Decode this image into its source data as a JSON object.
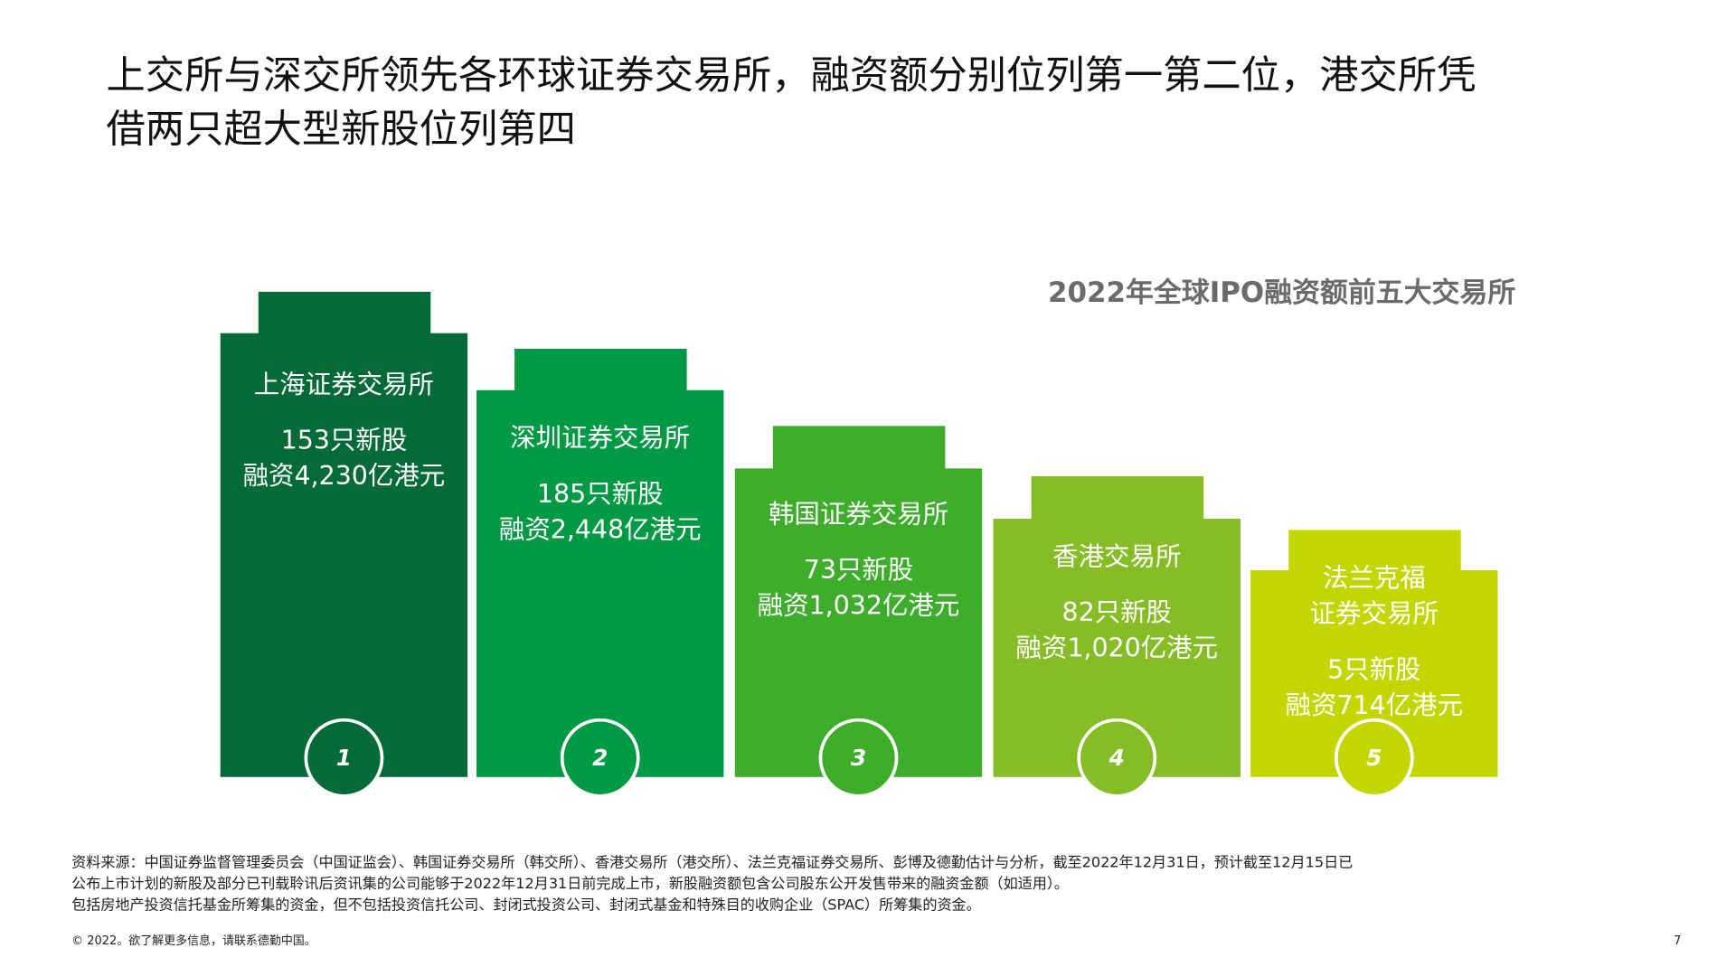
{
  "title_lines": [
    "上交所与深交所领先各环球证券交易所，融资额分别位列第一第二位，港交所凭",
    "借两只超大型新股位列第四"
  ],
  "subtitle": "2022年全球IPO融资额前五大交易所",
  "exchanges": [
    {
      "name_lines": [
        "上海证券交易所"
      ],
      "ipos": "153只新股",
      "funds": "融资4,230亿港元",
      "rank": "1"
    },
    {
      "name_lines": [
        "深圳证券交易所"
      ],
      "ipos": "185只新股",
      "funds": "融资2,448亿港元",
      "rank": "2"
    },
    {
      "name_lines": [
        "韩国证券交易所"
      ],
      "ipos": "73只新股",
      "funds": "融资1,032亿港元",
      "rank": "3"
    },
    {
      "name_lines": [
        "香港交易所"
      ],
      "ipos": "82只新股",
      "funds": "融资1,020亿港元",
      "rank": "4"
    },
    {
      "name_lines": [
        "法兰克福",
        "证券交易所"
      ],
      "ipos": "5只新股",
      "funds": "融资714亿港元",
      "rank": "5"
    }
  ],
  "source_lines": [
    "资料来源：中国证券监督管理委员会（中国证监会）、韩国证券交易所（韩交所）、香港交易所（港交所）、法兰克福证券交易所、彭博及德勤估计与分析，截至2022年12月31日，预计截至12月15日已",
    "公布上市计划的新股及部分已刊载聆讯后资讯集的公司能够于2022年12月31日前完成上市，新股融资额包含公司股东公开发售带来的融资金额（如适用）。",
    "包括房地产投资信托基金所筹集的资金，但不包括投资信托公司、封闭式投资公司、封闭式基金和特殊目的收购企业（SPAC）所筹集的资金。"
  ],
  "copyright": "© 2022。欲了解更多信息，请联系德勤中国。",
  "page_number": "7"
}
